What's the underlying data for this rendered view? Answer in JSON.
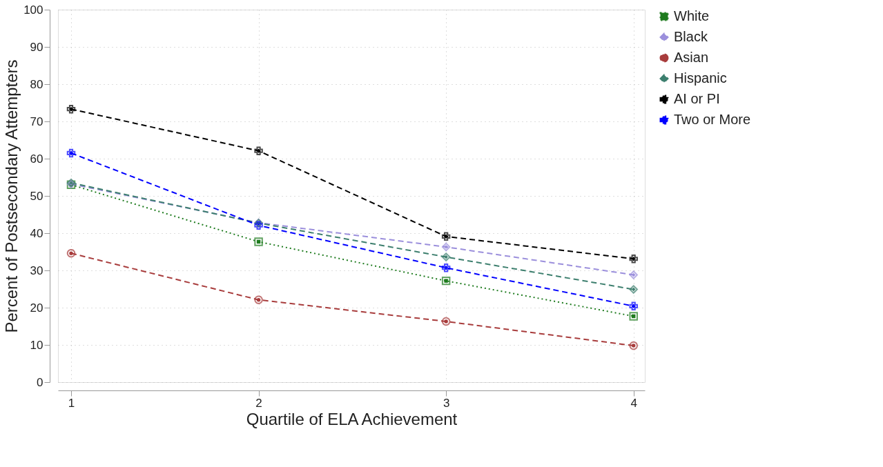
{
  "chart_data": {
    "type": "line",
    "xlabel": "Quartile of ELA Achievement",
    "ylabel": "Percent of Postsecondary Attempters",
    "x": [
      1,
      2,
      3,
      4
    ],
    "xlim": [
      0.93,
      4.06
    ],
    "xticks": [
      1,
      2,
      3,
      4
    ],
    "ylim": [
      0,
      100
    ],
    "yticks": [
      0,
      10,
      20,
      30,
      40,
      50,
      60,
      70,
      80,
      90,
      100
    ],
    "grid": true,
    "legend": "right",
    "series": [
      {
        "name": "White",
        "color": "#1e7b1e",
        "marker": "square",
        "line_style": "dotted",
        "values": [
          53.0,
          37.7,
          27.2,
          17.7
        ]
      },
      {
        "name": "Black",
        "color": "#9b8fdc",
        "marker": "diamond",
        "line_style": "dashed",
        "values": [
          53.2,
          42.8,
          36.3,
          28.8
        ]
      },
      {
        "name": "Asian",
        "color": "#a83c3c",
        "marker": "circle",
        "line_style": "dashed",
        "values": [
          34.6,
          22.1,
          16.3,
          9.8
        ]
      },
      {
        "name": "Hispanic",
        "color": "#3d7f6e",
        "marker": "diamond",
        "line_style": "dashed",
        "values": [
          53.5,
          42.7,
          33.6,
          24.9
        ]
      },
      {
        "name": "AI or PI",
        "color": "#000000",
        "marker": "cross",
        "line_style": "dashed",
        "values": [
          73.3,
          62.1,
          39.1,
          33.1
        ]
      },
      {
        "name": "Two or More",
        "color": "#0000ff",
        "marker": "cross",
        "line_style": "dashed",
        "values": [
          61.5,
          42.1,
          30.7,
          20.4
        ]
      }
    ]
  }
}
